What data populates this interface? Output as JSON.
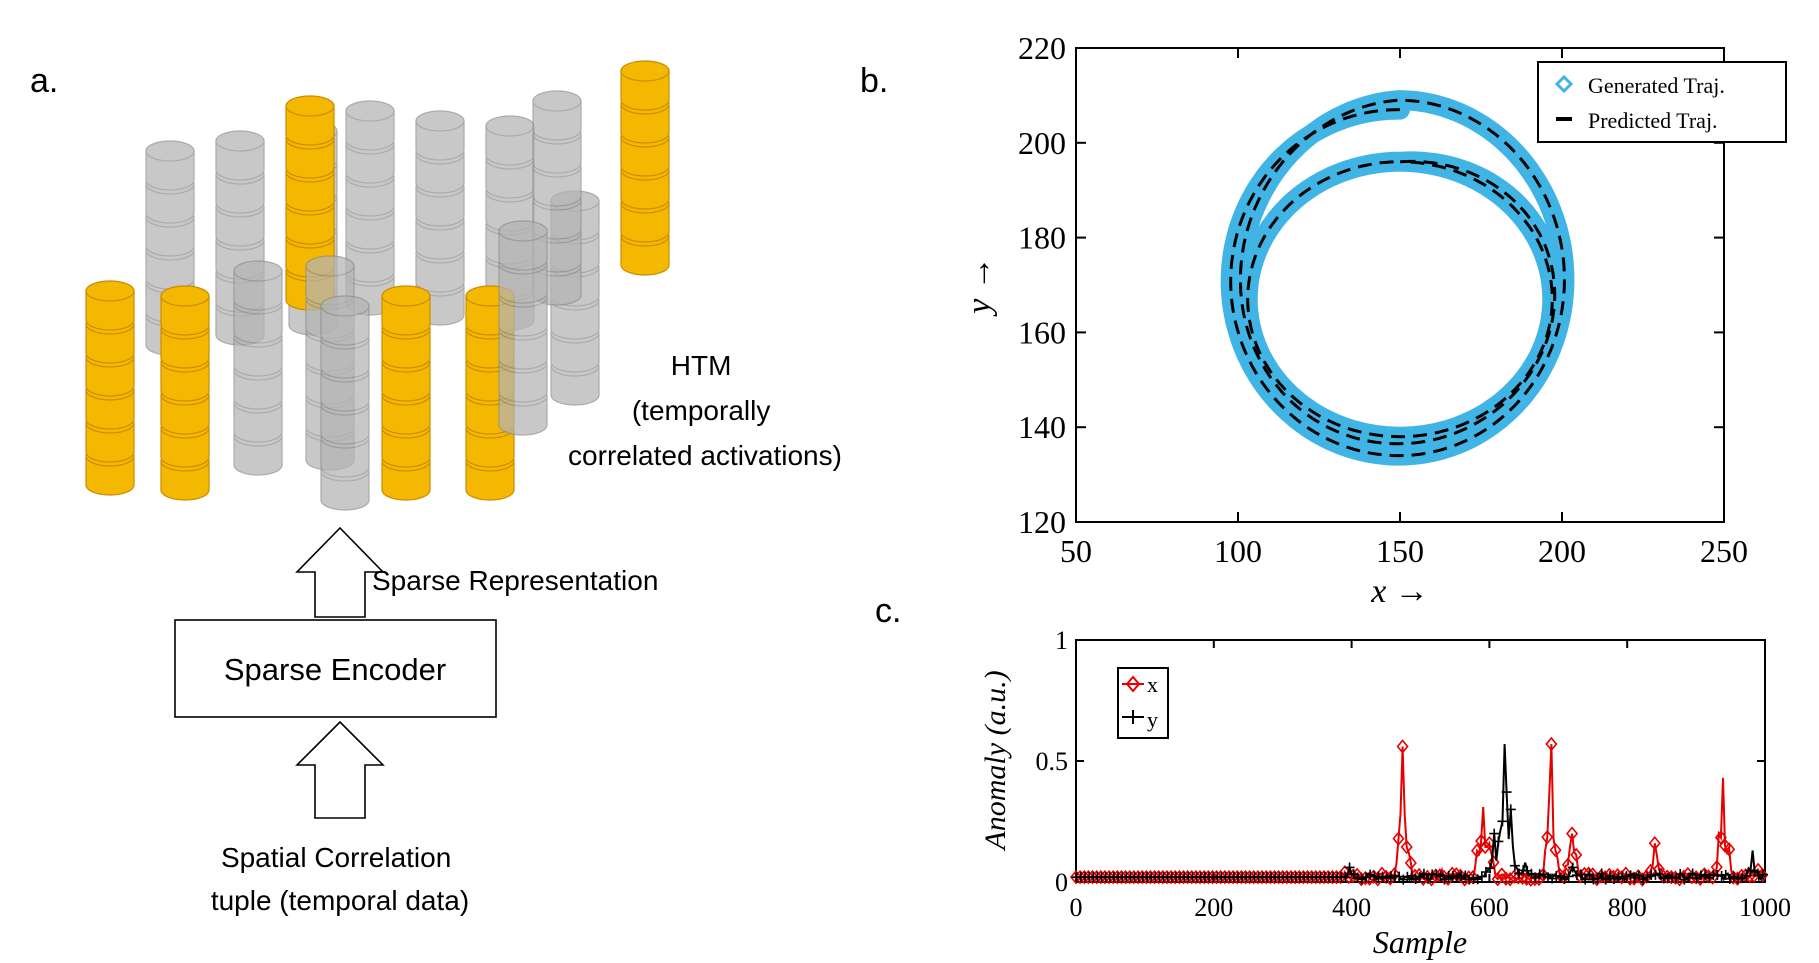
{
  "panel_a": {
    "label": "a.",
    "htm_label": [
      "HTM",
      "(temporally",
      "correlated activations)"
    ],
    "sparse_representation_label": "Sparse Representation",
    "encoder_label": "Sparse Encoder",
    "input_label": [
      "Spatial Correlation",
      "tuple (temporal data)"
    ],
    "colors": {
      "active": "#f5b800",
      "inactive": "#b4b4b4",
      "active_edge": "#c98d00",
      "inactive_edge": "#8c8c8c"
    }
  },
  "panel_b": {
    "label": "b."
  },
  "panel_c": {
    "label": "c."
  },
  "chart_data": [
    {
      "type": "line",
      "xlabel": "x →",
      "ylabel": "y →",
      "xlim": [
        50,
        250
      ],
      "ylim": [
        120,
        220
      ],
      "xticks": [
        "50",
        "100",
        "150",
        "200",
        "250"
      ],
      "yticks": [
        "120",
        "140",
        "160",
        "180",
        "200",
        "220"
      ],
      "legend": "top-right",
      "series": [
        {
          "name": "Generated Traj.",
          "color": "#41b4e6",
          "style": "thick-solid",
          "marker": "diamond"
        },
        {
          "name": "Predicted Traj.",
          "color": "#000000",
          "style": "dashed",
          "marker": "dash"
        }
      ],
      "trajectory": {
        "form": "three-turn spiral",
        "start": [
          150,
          207
        ],
        "center_x": [
          150,
          150,
          150
        ],
        "center_y": [
          170,
          172,
          167
        ],
        "radius_x": [
          53,
          50,
          47
        ],
        "radius_y": [
          37,
          37,
          29
        ]
      }
    },
    {
      "type": "line",
      "xlabel": "Sample",
      "ylabel": "Anomaly (a.u.)",
      "xlim": [
        0,
        1000
      ],
      "ylim": [
        0,
        1
      ],
      "xticks": [
        "0",
        "200",
        "400",
        "600",
        "800",
        "1000"
      ],
      "yticks": [
        "0",
        "0.5",
        "1"
      ],
      "legend": "top-left",
      "baseline": {
        "until_sample": 390,
        "value": 0.02
      },
      "series": [
        {
          "name": "x",
          "color": "#e60000",
          "marker": "diamond",
          "peaks": [
            [
              390,
              0.04
            ],
            [
              475,
              0.56
            ],
            [
              530,
              0.05
            ],
            [
              590,
              0.31
            ],
            [
              600,
              0.16
            ],
            [
              690,
              0.57
            ],
            [
              720,
              0.2
            ],
            [
              840,
              0.16
            ],
            [
              940,
              0.43
            ],
            [
              990,
              0.05
            ]
          ]
        },
        {
          "name": "y",
          "color": "#000000",
          "marker": "plus",
          "peaks": [
            [
              395,
              0.06
            ],
            [
              605,
              0.2
            ],
            [
              620,
              0.57
            ],
            [
              630,
              0.3
            ],
            [
              650,
              0.08
            ],
            [
              720,
              0.06
            ],
            [
              980,
              0.13
            ]
          ]
        }
      ]
    }
  ]
}
